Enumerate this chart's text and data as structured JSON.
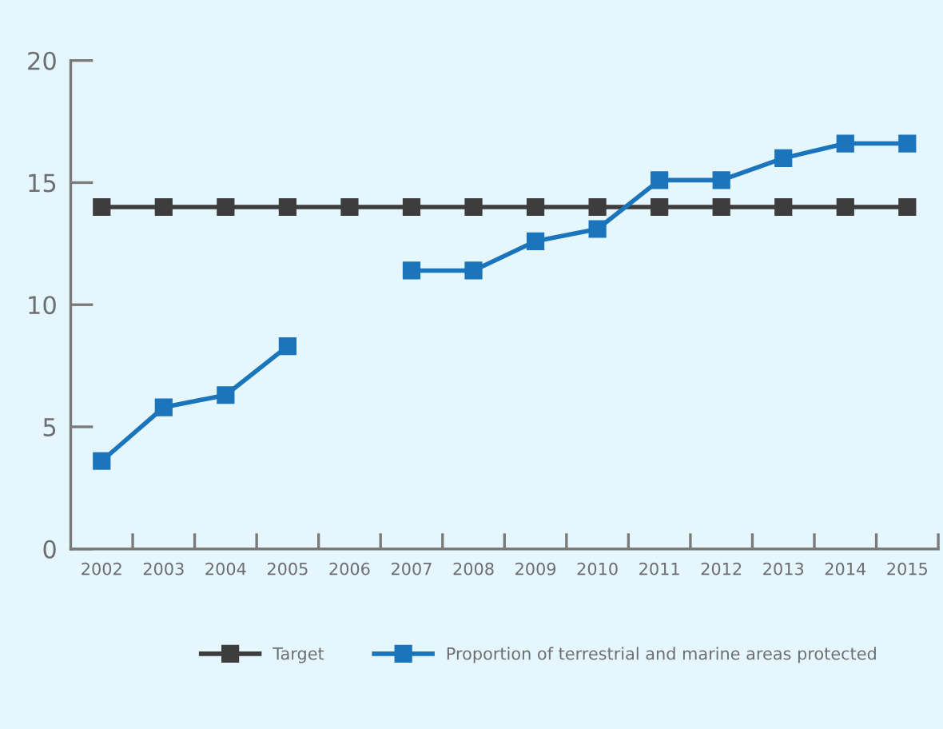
{
  "chart_data": {
    "type": "line",
    "categories": [
      "2002",
      "2003",
      "2004",
      "2005",
      "2006",
      "2007",
      "2008",
      "2009",
      "2010",
      "2011",
      "2012",
      "2013",
      "2014",
      "2015"
    ],
    "series": [
      {
        "name": "Target",
        "color": "#3d3d3d",
        "values": [
          14,
          14,
          14,
          14,
          14,
          14,
          14,
          14,
          14,
          14,
          14,
          14,
          14,
          14
        ]
      },
      {
        "name": "Proportion of terrestrial and marine areas protected",
        "color": "#1b75bc",
        "values": [
          3.6,
          5.8,
          6.3,
          8.3,
          null,
          11.4,
          11.4,
          12.6,
          13.1,
          15.1,
          15.1,
          16.0,
          16.6,
          16.6
        ]
      }
    ],
    "ylim": [
      0,
      20
    ],
    "yticks": [
      0,
      5,
      10,
      15,
      20
    ],
    "legend": "bottom",
    "marker": "square",
    "line_style": "solid"
  }
}
